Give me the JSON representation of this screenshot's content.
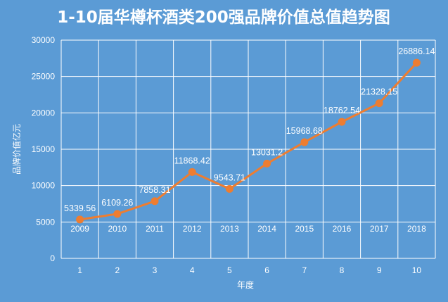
{
  "chart_data": {
    "type": "line",
    "title": "1-10届华樽杯酒类200强品牌价值总值趋势图",
    "xlabel": "年度",
    "ylabel": "品牌价值亿元",
    "categories": [
      "1",
      "2",
      "3",
      "4",
      "5",
      "6",
      "7",
      "8",
      "9",
      "10"
    ],
    "category_sublabels": [
      "2009",
      "2010",
      "2011",
      "2012",
      "2013",
      "2014",
      "2015",
      "2016",
      "2017",
      "2018"
    ],
    "series": [
      {
        "values": [
          5339.56,
          6109.26,
          7858.31,
          11868.42,
          9543.71,
          13031.2,
          15968.68,
          18762.54,
          21328.15,
          26886.14
        ],
        "labels": [
          "5339.56",
          "6109.26",
          "7858.31",
          "11868.42",
          "9543.71",
          "13031.2",
          "15968.68",
          "18762.54",
          "21328.15",
          "26886.14"
        ],
        "color": "#ed7d31"
      }
    ],
    "ylim": [
      0,
      30000
    ],
    "yticks": [
      "0",
      "5000",
      "10000",
      "15000",
      "20000",
      "25000",
      "30000"
    ],
    "grid": "vertical-and-horizontal",
    "background": "#5b9bd5",
    "grid_color": "#ffffff"
  }
}
